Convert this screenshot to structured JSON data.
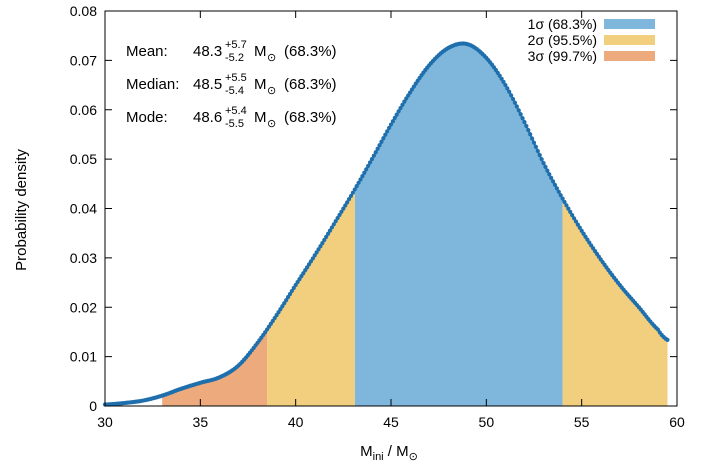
{
  "chart_data": {
    "type": "area",
    "xlabel": {
      "main": "M",
      "sub": "ini",
      "sep": " / M",
      "sun": "⊙"
    },
    "ylabel": "Probability density",
    "xlim": [
      30,
      60
    ],
    "ylim": [
      0,
      0.08
    ],
    "xticks": [
      "30",
      "35",
      "40",
      "45",
      "50",
      "55",
      "60"
    ],
    "yticks": [
      "0",
      "0.01",
      "0.02",
      "0.03",
      "0.04",
      "0.05",
      "0.06",
      "0.07",
      "0.08"
    ],
    "legend_position": "top-right",
    "regions": [
      {
        "name": "1σ (68.3%)",
        "color": "#7fb6db",
        "ranges": [
          [
            43.1,
            54.0
          ]
        ]
      },
      {
        "name": "2σ (95.5%)",
        "color": "#f2cf7e",
        "ranges": [
          [
            38.5,
            43.1
          ],
          [
            54.0,
            59.5
          ]
        ]
      },
      {
        "name": "3σ (99.7%)",
        "color": "#edaa7c",
        "ranges": [
          [
            33.0,
            38.5
          ],
          [
            59.5,
            60.0
          ]
        ]
      }
    ],
    "curve_color": "#1f6fad",
    "curve": {
      "x": [
        30,
        31,
        32,
        33,
        34,
        35,
        36,
        37,
        38,
        39,
        40,
        41,
        42,
        43,
        44,
        45,
        46,
        47,
        48,
        49,
        50,
        51,
        52,
        53,
        54,
        55,
        56,
        57,
        58,
        59,
        59.5
      ],
      "y": [
        0.0003,
        0.0006,
        0.0011,
        0.0021,
        0.0035,
        0.0047,
        0.0058,
        0.0082,
        0.0128,
        0.0184,
        0.0245,
        0.0305,
        0.0368,
        0.0432,
        0.05,
        0.057,
        0.0635,
        0.069,
        0.0725,
        0.0733,
        0.0705,
        0.065,
        0.0575,
        0.0492,
        0.042,
        0.0355,
        0.0297,
        0.0245,
        0.02,
        0.0155,
        0.0134
      ]
    },
    "annotations": [
      {
        "label": "Mean:",
        "value": "48.3",
        "sup": "+5.7",
        "sub": "-5.2",
        "unit": "M",
        "sun": "⊙",
        "conf": "(68.3%)"
      },
      {
        "label": "Median:",
        "value": "48.5",
        "sup": "+5.5",
        "sub": "-5.4",
        "unit": "M",
        "sun": "⊙",
        "conf": "(68.3%)"
      },
      {
        "label": "Mode:",
        "value": "48.6",
        "sup": "+5.4",
        "sub": "-5.5",
        "unit": "M",
        "sun": "⊙",
        "conf": "(68.3%)"
      }
    ]
  }
}
